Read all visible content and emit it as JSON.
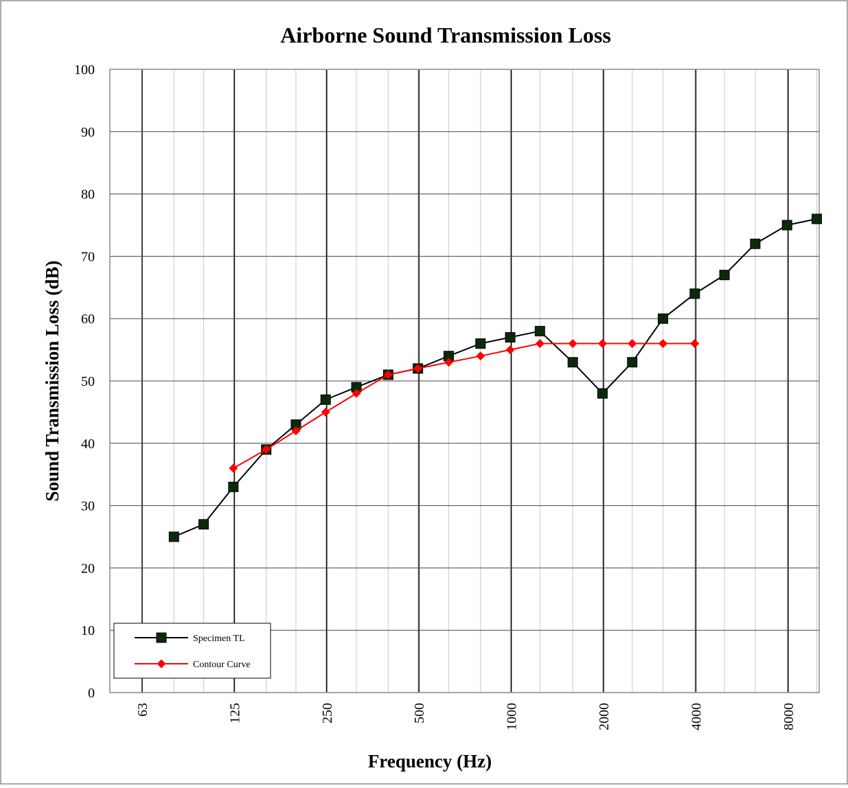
{
  "chart_data": {
    "type": "line",
    "title": "Airborne Sound Transmission Loss",
    "xlabel": "Frequency (Hz)",
    "ylabel": "Sound Transmission Loss (dB)",
    "x_scale": "log",
    "x_tick_labels": [
      "63",
      "125",
      "250",
      "500",
      "1000",
      "2000",
      "4000",
      "8000"
    ],
    "y_ticks": [
      0,
      10,
      20,
      30,
      40,
      50,
      60,
      70,
      80,
      90,
      100
    ],
    "ylim": [
      0,
      100
    ],
    "grid": true,
    "legend_position": "bottom-left",
    "x": [
      80,
      100,
      125,
      160,
      200,
      250,
      315,
      400,
      500,
      630,
      800,
      1000,
      1250,
      1600,
      2000,
      2500,
      3150,
      4000,
      5000,
      6300,
      8000,
      10000
    ],
    "series": [
      {
        "name": "Specimen TL",
        "color": "#000000",
        "marker_color": "#0b2a0b",
        "marker": "square",
        "values": [
          25,
          27,
          33,
          39,
          43,
          47,
          49,
          51,
          52,
          54,
          56,
          57,
          58,
          53,
          48,
          53,
          60,
          64,
          67,
          72,
          75,
          76
        ]
      },
      {
        "name": "Contour Curve",
        "color": "#ff0000",
        "marker": "diamond",
        "values": [
          null,
          null,
          36,
          39,
          42,
          45,
          48,
          51,
          52,
          53,
          54,
          55,
          56,
          56,
          56,
          56,
          56,
          56,
          null,
          null,
          null,
          null
        ]
      }
    ]
  }
}
